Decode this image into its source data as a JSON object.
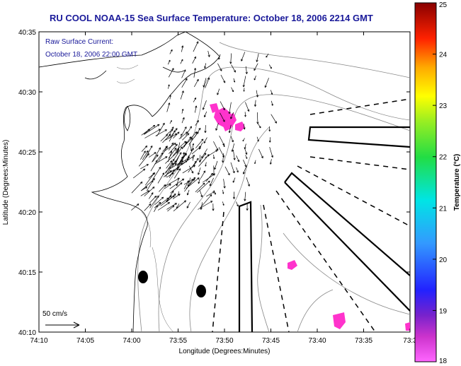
{
  "title": "RU COOL  NOAA-15  Sea Surface Temperature:  October 18, 2006 2214 GMT",
  "current_label_line1": "Raw Surface Current:",
  "current_label_line2": "October 18, 2006 22:00 GMT",
  "scale_label": "50 cm/s",
  "xlabel": "Longitude (Degrees:Minutes)",
  "ylabel": "Latitude (Degrees:Minutes)",
  "x_ticks": [
    "74:10",
    "74:05",
    "74:00",
    "73:55",
    "73:50",
    "73:45",
    "73:40",
    "73:35",
    "73:3"
  ],
  "y_ticks": [
    "40:35",
    "40:30",
    "40:25",
    "40:20",
    "40:15",
    "40:10"
  ],
  "colorbar": {
    "label": "Temperature (°C)",
    "ticks": [
      "25",
      "24",
      "23",
      "22",
      "21",
      "20",
      "19",
      "18"
    ],
    "range": [
      18,
      25
    ]
  },
  "colors": {
    "title": "#1a1a9a",
    "sst_patch": "#ff33cc",
    "land": "#ffffff",
    "contours": "#888888"
  }
}
